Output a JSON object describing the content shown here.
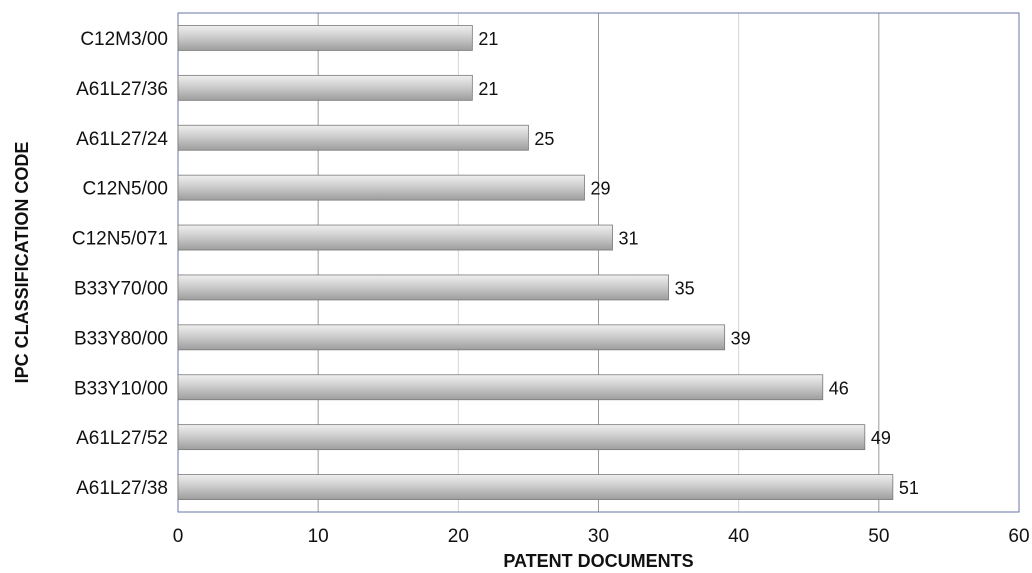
{
  "chart_data": {
    "type": "bar",
    "orientation": "horizontal",
    "title": "",
    "xlabel": "PATENT DOCUMENTS",
    "ylabel": "IPC CLASSIFICATION CODE",
    "categories": [
      "C12M3/00",
      "A61L27/36",
      "A61L27/24",
      "C12N5/00",
      "C12N5/071",
      "B33Y70/00",
      "B33Y80/00",
      "B33Y10/00",
      "A61L27/52",
      "A61L27/38"
    ],
    "values": [
      21,
      21,
      25,
      29,
      31,
      35,
      39,
      46,
      49,
      51
    ],
    "xlim": [
      0,
      60
    ],
    "xticks": [
      0,
      10,
      20,
      30,
      40,
      50,
      60
    ],
    "grid": "vertical",
    "legend": "none",
    "bar_color": "#c8c8c8",
    "frame_color": "#6b74a8"
  }
}
